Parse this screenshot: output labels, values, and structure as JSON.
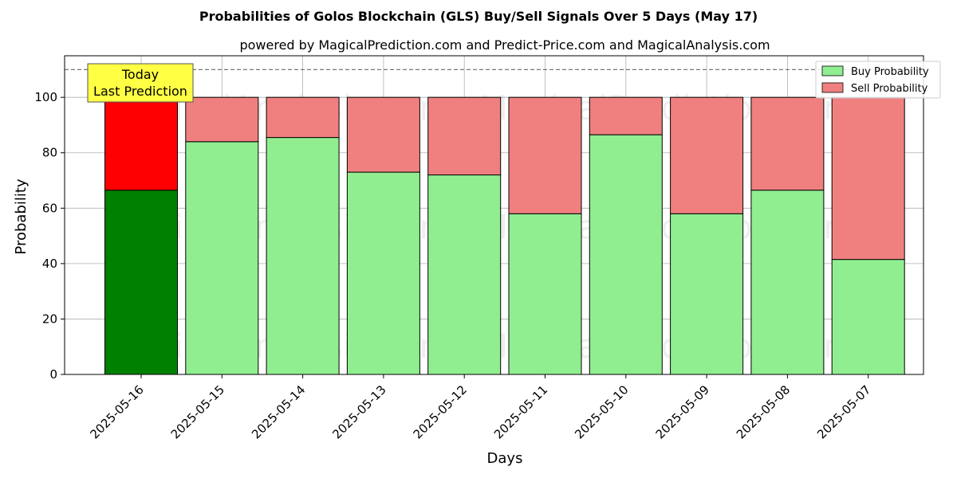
{
  "chart_data": {
    "type": "bar",
    "stacked": true,
    "title": "Probabilities of Golos Blockchain (GLS) Buy/Sell Signals Over 5 Days (May 17)",
    "subtitle": "powered by MagicalPrediction.com and Predict-Price.com and MagicalAnalysis.com",
    "xlabel": "Days",
    "ylabel": "Probability",
    "ylim": [
      0,
      115
    ],
    "yticks": [
      0,
      20,
      40,
      60,
      80,
      100
    ],
    "reference_line": 110,
    "grid": true,
    "legend_position": "top-right",
    "categories": [
      "2025-05-16",
      "2025-05-15",
      "2025-05-14",
      "2025-05-13",
      "2025-05-12",
      "2025-05-11",
      "2025-05-10",
      "2025-05-09",
      "2025-05-08",
      "2025-05-07"
    ],
    "series": [
      {
        "name": "Buy Probability",
        "color": "#90ee90",
        "highlight_color": "#008000",
        "values": [
          66.5,
          84,
          85.5,
          73,
          72,
          58,
          86.5,
          58,
          66.5,
          41.5
        ]
      },
      {
        "name": "Sell Probability",
        "color": "#f08080",
        "highlight_color": "#ff0000",
        "values": [
          33.5,
          16,
          14.5,
          27,
          28,
          42,
          13.5,
          42,
          33.5,
          58.5
        ]
      }
    ],
    "highlight_index": 0,
    "annotation": {
      "lines": [
        "Today",
        "Last Prediction"
      ],
      "color": "#ffff44"
    },
    "watermarks": [
      "MagicalAnalysis.com",
      "MagicalPrediction.com"
    ]
  }
}
